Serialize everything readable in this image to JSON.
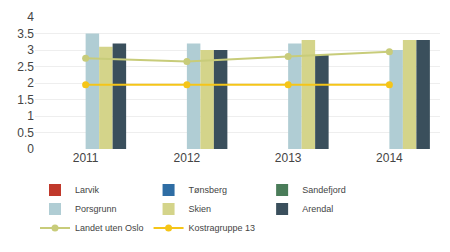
{
  "chart_data": {
    "type": "bar",
    "categories": [
      "2011",
      "2012",
      "2013",
      "2014"
    ],
    "series": [
      {
        "name": "Larvik",
        "type": "bar",
        "color": "#c0392b",
        "values": [
          0.0,
          0.0,
          0.0,
          0.0
        ]
      },
      {
        "name": "Tønsberg",
        "type": "bar",
        "color": "#2e6da4",
        "values": [
          0.0,
          0.0,
          0.0,
          0.0
        ]
      },
      {
        "name": "Sandefjord",
        "type": "bar",
        "color": "#4a7c59",
        "values": [
          0.0,
          0.0,
          0.0,
          0.0
        ]
      },
      {
        "name": "Porsgrunn",
        "type": "bar",
        "color": "#b0cdd4",
        "values": [
          3.5,
          3.2,
          3.2,
          3.0
        ]
      },
      {
        "name": "Skien",
        "type": "bar",
        "color": "#d4d48a",
        "values": [
          3.1,
          3.0,
          3.3,
          3.3
        ]
      },
      {
        "name": "Arendal",
        "type": "bar",
        "color": "#3a4f5c",
        "values": [
          3.2,
          3.0,
          2.85,
          3.3
        ]
      },
      {
        "name": "Landet uten Oslo",
        "type": "line",
        "marker": "o",
        "color": "#c8cc7a",
        "values": [
          2.75,
          2.65,
          2.8,
          2.95
        ]
      },
      {
        "name": "Kostragruppe 13",
        "type": "line",
        "marker": "o",
        "color": "#f5c518",
        "values": [
          1.95,
          1.95,
          1.95,
          1.95
        ]
      }
    ],
    "ylim": [
      0,
      4
    ],
    "yticks": [
      0,
      0.5,
      1,
      1.5,
      2,
      2.5,
      3,
      3.5,
      4
    ],
    "grid": true,
    "legend": "bottom"
  }
}
